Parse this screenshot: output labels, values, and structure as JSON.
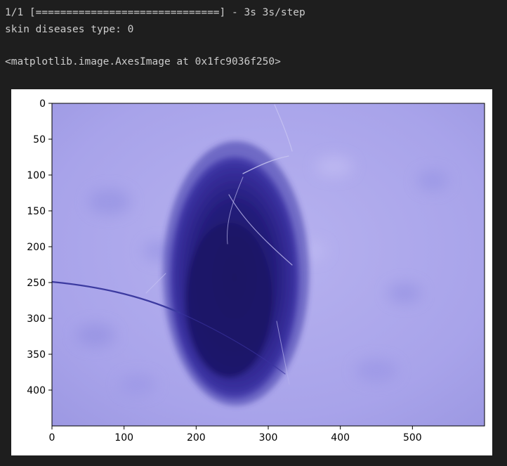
{
  "output": {
    "progress_line": "1/1 [==============================] - 3s 3s/step",
    "prediction_line": "skin diseases type: 0",
    "repr_line": "<matplotlib.image.AxesImage at 0x1fc9036f250>"
  },
  "chart_data": {
    "type": "image",
    "xlim": [
      0,
      600
    ],
    "ylim": [
      450,
      0
    ],
    "x_ticks": [
      "0",
      "100",
      "200",
      "300",
      "400",
      "500"
    ],
    "y_ticks": [
      "0",
      "50",
      "100",
      "150",
      "200",
      "250",
      "300",
      "350",
      "400"
    ],
    "xlabel": "",
    "ylabel": "",
    "title": ""
  }
}
